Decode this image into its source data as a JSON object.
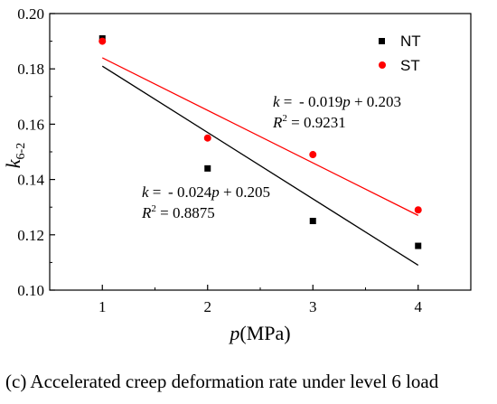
{
  "chart_data": {
    "type": "scatter",
    "x": [
      1,
      2,
      3,
      4
    ],
    "xlim": [
      0.5,
      4.5
    ],
    "ylim": [
      0.1,
      0.2
    ],
    "x_ticks": [
      "1",
      "2",
      "3",
      "4"
    ],
    "y_ticks": [
      "0.10",
      "0.12",
      "0.14",
      "0.16",
      "0.18",
      "0.20"
    ],
    "xlabel": {
      "italic": "p",
      "rest": "(MPa)"
    },
    "ylabel": {
      "base": "k",
      "sub": "6-2"
    },
    "series": [
      {
        "name": "NT",
        "marker": "square",
        "color": "#000000",
        "values": [
          0.191,
          0.144,
          0.125,
          0.116
        ],
        "fit": {
          "slope": -0.024,
          "intercept": 0.205,
          "color": "#000000",
          "equation": {
            "k": "k",
            "mid": " =  - 0.024",
            "p": "p",
            "tail": " + 0.205"
          },
          "r2": {
            "R": "R",
            "sup": "2",
            "tail": " = 0.8875"
          }
        }
      },
      {
        "name": "ST",
        "marker": "circle",
        "color": "#ff0000",
        "values": [
          0.19,
          0.155,
          0.149,
          0.129
        ],
        "fit": {
          "slope": -0.019,
          "intercept": 0.203,
          "color": "#ff0000",
          "equation": {
            "k": "k",
            "mid": " =  - 0.019",
            "p": "p",
            "tail": " + 0.203"
          },
          "r2": {
            "R": "R",
            "sup": "2",
            "tail": " = 0.9231"
          }
        }
      }
    ],
    "legend": "top-right",
    "grid": false
  },
  "caption": {
    "label": "(c)",
    "text": " Accelerated creep deformation rate under level 6 load"
  }
}
